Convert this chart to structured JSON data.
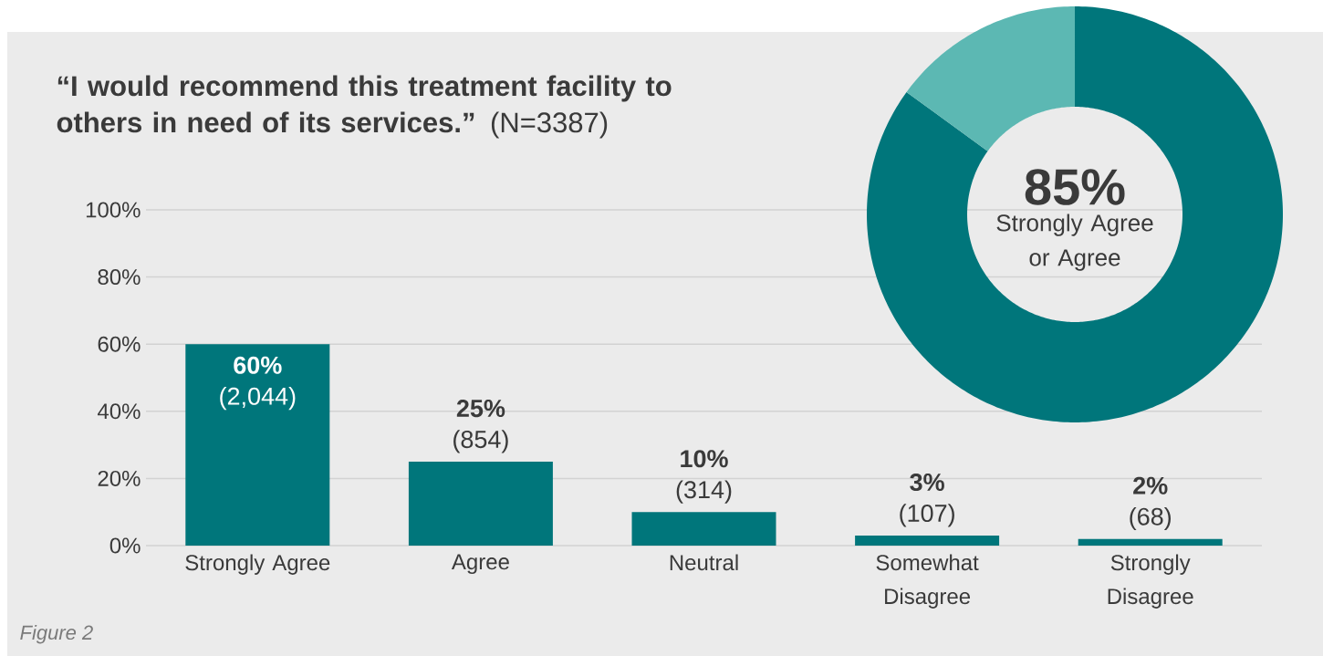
{
  "chart_data": [
    {
      "type": "bar",
      "title": "**“I would recommend this treatment facility to others in need of its services.”** (N=3387)",
      "categories": [
        "Strongly Agree",
        "Agree",
        "Neutral",
        "Somewhat Disagree",
        "Strongly Disagree"
      ],
      "values": [
        60,
        25,
        10,
        3,
        2
      ],
      "value_labels": [
        "**60%** (2,044)",
        "**25%** (854)",
        "**10%** (314)",
        "**3%** (107)",
        "**2%** (68)"
      ],
      "color": "#00767b",
      "ylim": [
        0,
        100
      ],
      "yticks": [
        {
          "value": 0,
          "label": "0%"
        },
        {
          "value": 20,
          "label": "20%"
        },
        {
          "value": 40,
          "label": "40%"
        },
        {
          "value": 60,
          "label": "60%"
        },
        {
          "value": 80,
          "label": "80%"
        },
        {
          "value": 100,
          "label": "100%"
        }
      ],
      "grid": "y",
      "annotations": [
        "Figure 2"
      ]
    },
    {
      "type": "donut",
      "categories": [
        null,
        null
      ],
      "values": [
        85,
        15
      ],
      "colors": [
        "#00767b",
        "#5cb8b3"
      ],
      "value_labels": [
        "85%",
        null
      ],
      "annotations": [
        "Strongly Agree or Agree"
      ]
    }
  ]
}
